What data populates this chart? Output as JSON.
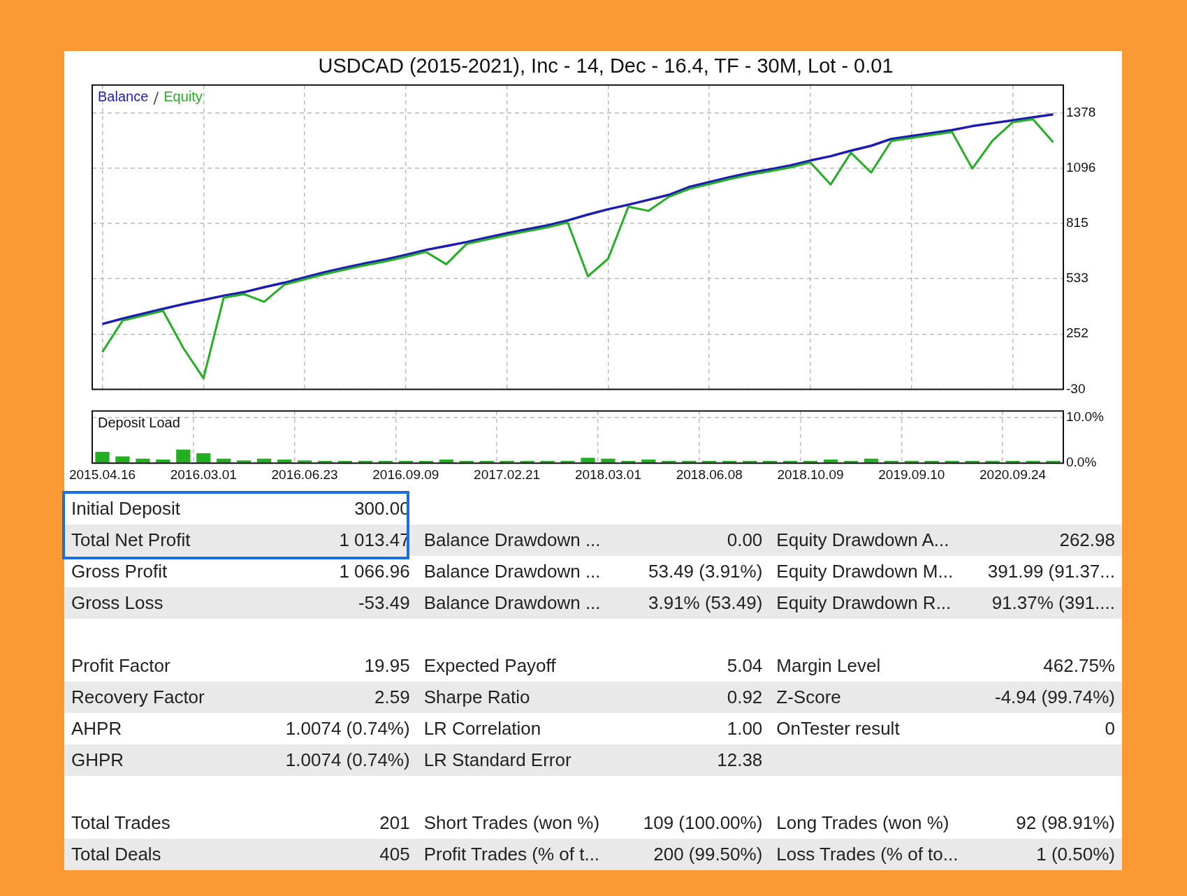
{
  "chart_data": [
    {
      "type": "line",
      "title": "USDCAD (2015-2021), Inc - 14, Dec - 16.4, TF - 30M, Lot - 0.01",
      "categories": [
        "2015.04.16",
        null,
        null,
        null,
        null,
        "2016.03.01",
        null,
        null,
        null,
        null,
        "2016.06.23",
        null,
        null,
        null,
        null,
        "2016.09.09",
        null,
        null,
        null,
        null,
        "2017.02.21",
        null,
        null,
        null,
        null,
        "2018.03.01",
        null,
        null,
        null,
        null,
        "2018.06.08",
        null,
        null,
        null,
        null,
        "2018.10.09",
        null,
        null,
        null,
        null,
        "2019.09.10",
        null,
        null,
        null,
        null,
        "2020.09.24",
        null,
        null
      ],
      "series": [
        {
          "name": "Equity",
          "color": "#22b022",
          "values": [
            160,
            320,
            345,
            370,
            181,
            27,
            437,
            455,
            416,
            503,
            530,
            557,
            580,
            602,
            622,
            645,
            670,
            607,
            710,
            733,
            755,
            775,
            795,
            820,
            546,
            635,
            900,
            879,
            950,
            990,
            1015,
            1040,
            1062,
            1080,
            1100,
            1125,
            1013,
            1175,
            1074,
            1235,
            1250,
            1265,
            1280,
            1094,
            1236,
            1330,
            1345,
            1228
          ]
        },
        {
          "name": "Balance",
          "color": "#1c1cb4",
          "values": [
            303,
            330,
            355,
            380,
            404,
            425,
            447,
            465,
            490,
            513,
            540,
            567,
            590,
            612,
            632,
            655,
            680,
            700,
            720,
            743,
            765,
            785,
            805,
            830,
            860,
            887,
            910,
            935,
            960,
            1000,
            1025,
            1050,
            1072,
            1090,
            1110,
            1135,
            1157,
            1185,
            1210,
            1245,
            1260,
            1275,
            1290,
            1310,
            1325,
            1340,
            1355,
            1370
          ]
        }
      ],
      "ylim": [
        -30,
        1519
      ],
      "yticks": [
        -30,
        252,
        533,
        815,
        1096,
        1378
      ],
      "grid": true,
      "legend": "top left",
      "marker": "none",
      "tick_labels": "y"
    },
    {
      "type": "bar",
      "title": "Deposit Load",
      "categories": [
        "2015.04.16",
        null,
        null,
        null,
        null,
        "2016.03.01",
        null,
        null,
        null,
        null,
        "2016.06.23",
        null,
        null,
        null,
        null,
        "2016.09.09",
        null,
        null,
        null,
        null,
        "2017.02.21",
        null,
        null,
        null,
        null,
        "2018.03.01",
        null,
        null,
        null,
        null,
        "2018.06.08",
        null,
        null,
        null,
        null,
        "2018.10.09",
        null,
        null,
        null,
        null,
        "2019.09.10",
        null,
        null,
        null,
        null,
        "2020.09.24",
        null,
        null
      ],
      "values": [
        2.5,
        1.5,
        1.0,
        0.8,
        3.0,
        2.2,
        1.0,
        0.6,
        1.0,
        0.8,
        0.6,
        0.5,
        0.5,
        0.5,
        0.5,
        0.5,
        0.5,
        0.8,
        0.5,
        0.5,
        0.5,
        0.5,
        0.5,
        0.5,
        1.2,
        1.0,
        0.5,
        0.8,
        0.5,
        0.5,
        0.5,
        0.5,
        0.5,
        0.5,
        0.5,
        0.5,
        0.8,
        0.5,
        1.0,
        0.5,
        0.5,
        0.5,
        0.5,
        0.5,
        0.5,
        0.5,
        0.5,
        0.5
      ],
      "color": "#22b022",
      "ylim": [
        0,
        11.5
      ],
      "yticks": [
        {
          "value": 10,
          "label": "10.0%"
        },
        {
          "value": 0,
          "label": "0.0%"
        }
      ],
      "grid": true
    },
    {
      "type": "other",
      "annotations": [
        "Initial Deposit",
        "300.00",
        null,
        null,
        null,
        null,
        "Total Net Profit",
        "1 013.47",
        "Balance Drawdown ...",
        "0.00",
        "Equity Drawdown A...",
        "262.98",
        "Gross Profit",
        "1 066.96",
        "Balance Drawdown ...",
        "53.49 (3.91%)",
        "Equity Drawdown M...",
        "391.99 (91.37...",
        "Gross Loss",
        "-53.49",
        "Balance Drawdown ...",
        "3.91% (53.49)",
        "Equity Drawdown R...",
        "91.37% (391...."
      ]
    },
    {
      "type": "other",
      "annotations": [
        "Profit Factor",
        "19.95",
        "Expected Payoff",
        "5.04",
        "Margin Level",
        "462.75%",
        "Recovery Factor",
        "2.59",
        "Sharpe Ratio",
        "0.92",
        "Z-Score",
        "-4.94 (99.74%)",
        "AHPR",
        "1.0074 (0.74%)",
        "LR Correlation",
        "1.00",
        "OnTester result",
        "0",
        "GHPR",
        "1.0074 (0.74%)",
        "LR Standard Error",
        "12.38",
        null,
        null
      ]
    },
    {
      "type": "other",
      "annotations": [
        "Total Trades",
        "201",
        "Short Trades (won %)",
        "109 (100.00%)",
        "Long Trades (won %)",
        "92 (98.91%)",
        "Total Deals",
        "405",
        "Profit Trades (% of t...",
        "200 (99.50%)",
        "Loss Trades (% of to...",
        "1 (0.50%)"
      ]
    }
  ]
}
